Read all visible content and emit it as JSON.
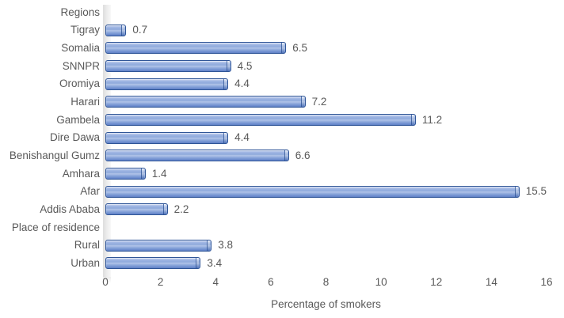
{
  "chart_data": {
    "type": "bar",
    "orientation": "horizontal",
    "title": "",
    "xlabel": "Percentage of smokers",
    "ylabel": "",
    "xlim": [
      0,
      16
    ],
    "xticks": [
      0,
      2,
      4,
      6,
      8,
      10,
      12,
      14,
      16
    ],
    "grid": false,
    "legend": "none",
    "categories": [
      "Regions",
      "Tigray",
      "Somalia",
      "SNNPR",
      "Oromiya",
      "Harari",
      "Gambela",
      "Dire Dawa",
      "Benishangul Gumz",
      "Amhara",
      "Afar",
      "Addis Ababa",
      "Place of residence",
      "Rural",
      "Urban"
    ],
    "values": [
      null,
      0.7,
      6.5,
      4.5,
      4.4,
      7.2,
      11.2,
      4.4,
      6.6,
      1.4,
      15.5,
      2.2,
      null,
      3.8,
      3.4
    ],
    "data_labels_shown": true,
    "bar_fill": "#8faadc",
    "bar_border": "#2f5597",
    "text_color": "#595959",
    "wall_color": "#ebebeb"
  }
}
